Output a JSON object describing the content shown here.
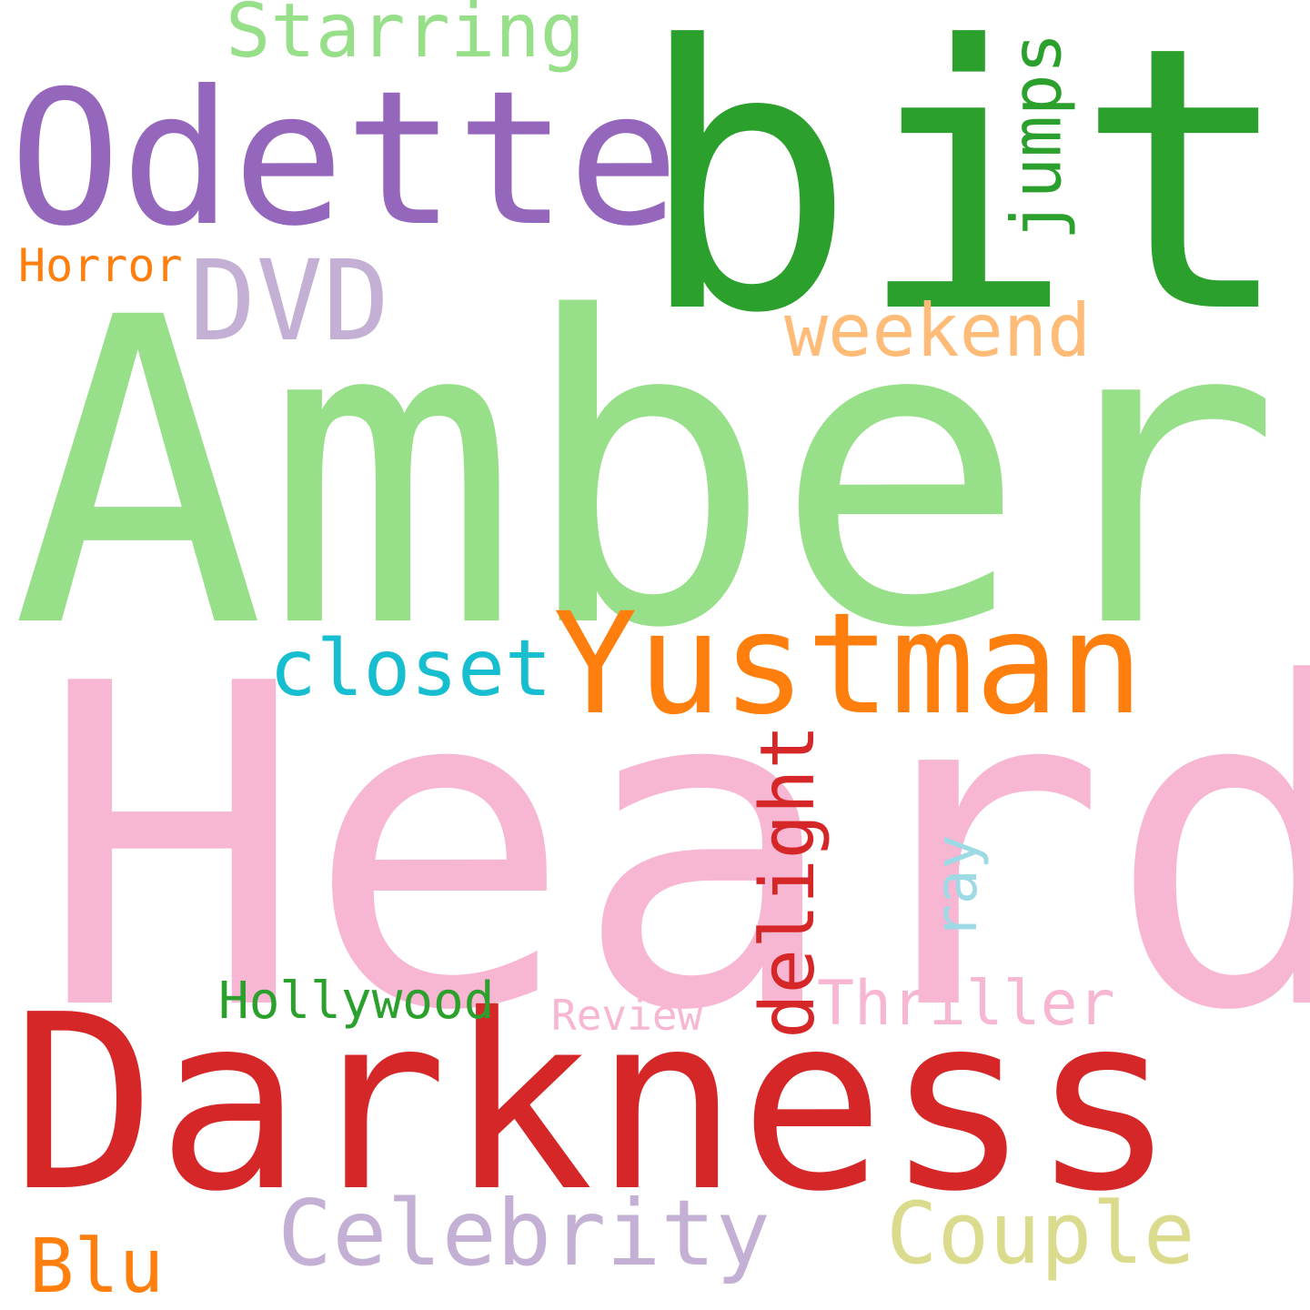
{
  "words": [
    {
      "id": "heard",
      "text": "Heard",
      "color": "#F7B6D2"
    },
    {
      "id": "amber",
      "text": "Amber",
      "color": "#98DF8A"
    },
    {
      "id": "bit",
      "text": "bit",
      "color": "#2CA02C"
    },
    {
      "id": "darkness",
      "text": "Darkness",
      "color": "#D62728"
    },
    {
      "id": "odette",
      "text": "Odette",
      "color": "#9467BD"
    },
    {
      "id": "yustman",
      "text": "Yustman",
      "color": "#FF7F0E"
    },
    {
      "id": "starring",
      "text": "Starring",
      "color": "#98DF8A"
    },
    {
      "id": "jumps",
      "text": "jumps",
      "color": "#2CA02C"
    },
    {
      "id": "dvd",
      "text": "DVD",
      "color": "#C5B0D5"
    },
    {
      "id": "horror",
      "text": "Horror",
      "color": "#FF7F0E"
    },
    {
      "id": "weekend",
      "text": "weekend",
      "color": "#FFBB78"
    },
    {
      "id": "closet",
      "text": "closet",
      "color": "#17BECF"
    },
    {
      "id": "delight",
      "text": "delight",
      "color": "#D62728"
    },
    {
      "id": "ray",
      "text": "ray",
      "color": "#9EDAE5"
    },
    {
      "id": "hollywood",
      "text": "Hollywood",
      "color": "#2CA02C"
    },
    {
      "id": "review",
      "text": "Review",
      "color": "#F7B6D2"
    },
    {
      "id": "thriller",
      "text": "Thriller",
      "color": "#F7B6D2"
    },
    {
      "id": "celebrity",
      "text": "Celebrity",
      "color": "#C5B0D5"
    },
    {
      "id": "couple",
      "text": "Couple",
      "color": "#DBDB8D"
    },
    {
      "id": "blu",
      "text": "Blu",
      "color": "#FF7F0E"
    }
  ]
}
